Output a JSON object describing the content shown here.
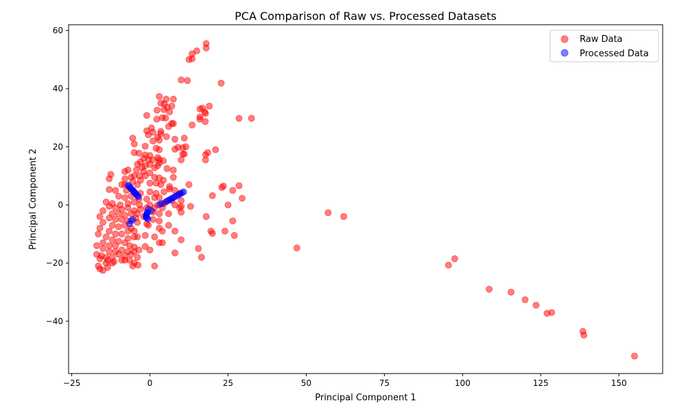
{
  "chart_data": {
    "type": "scatter",
    "title": "PCA Comparison of Raw vs. Processed Datasets",
    "xlabel": "Principal Component 1",
    "ylabel": "Principal Component 2",
    "xlim": [
      -26,
      164
    ],
    "ylim": [
      -58,
      62
    ],
    "xticks": [
      -25,
      0,
      25,
      50,
      75,
      100,
      125,
      150
    ],
    "yticks": [
      -40,
      -20,
      0,
      20,
      40,
      60
    ],
    "grid": false,
    "legend_position": "top-right",
    "series": [
      {
        "name": "Raw Data",
        "color": "#ff0000",
        "alpha": 0.5,
        "points": [
          [
            18,
            55.5
          ],
          [
            18,
            54
          ],
          [
            15,
            53
          ],
          [
            13.5,
            52
          ],
          [
            13.5,
            50.3
          ],
          [
            12.5,
            50
          ],
          [
            10,
            43
          ],
          [
            12,
            42.8
          ],
          [
            22.8,
            41.9
          ],
          [
            3,
            37.3
          ],
          [
            5.2,
            36.4
          ],
          [
            7.5,
            36.4
          ],
          [
            3.5,
            35
          ],
          [
            4.6,
            34.8
          ],
          [
            7,
            34
          ],
          [
            5.5,
            33.6
          ],
          [
            2.3,
            32.6
          ],
          [
            4.5,
            32.8
          ],
          [
            6.3,
            32
          ],
          [
            16,
            33
          ],
          [
            16.8,
            33.3
          ],
          [
            17.5,
            32
          ],
          [
            19,
            34
          ],
          [
            17.8,
            31.5
          ],
          [
            28.5,
            29.8
          ],
          [
            32.5,
            29.8
          ],
          [
            16,
            29.5
          ],
          [
            16,
            30.3
          ],
          [
            17.7,
            28.7
          ],
          [
            -1,
            30.8
          ],
          [
            2.2,
            29.5
          ],
          [
            4,
            30
          ],
          [
            5,
            29.9
          ],
          [
            7,
            28
          ],
          [
            7.5,
            28
          ],
          [
            13.5,
            27.5
          ],
          [
            6,
            27
          ],
          [
            0.5,
            26.5
          ],
          [
            -1,
            25.5
          ],
          [
            1,
            25
          ],
          [
            -0.5,
            24.1
          ],
          [
            3.5,
            24.5
          ],
          [
            3.5,
            25.3
          ],
          [
            5.3,
            23.5
          ],
          [
            -5.5,
            23
          ],
          [
            8,
            22.6
          ],
          [
            11,
            23
          ],
          [
            1,
            22
          ],
          [
            2.5,
            23.3
          ],
          [
            3,
            22.3
          ],
          [
            -5,
            21
          ],
          [
            -1.5,
            20.2
          ],
          [
            2,
            19.5
          ],
          [
            3,
            19
          ],
          [
            8,
            19.2
          ],
          [
            9,
            19.8
          ],
          [
            10.5,
            19.7
          ],
          [
            11.5,
            20
          ],
          [
            21,
            19
          ],
          [
            18.5,
            18
          ],
          [
            -5,
            18
          ],
          [
            -3.5,
            17.8
          ],
          [
            -1.5,
            17.2
          ],
          [
            0,
            17
          ],
          [
            2.5,
            16.3
          ],
          [
            10.5,
            17.5
          ],
          [
            11,
            17.5
          ],
          [
            17.8,
            17.3
          ],
          [
            17.8,
            15.5
          ],
          [
            -2,
            16
          ],
          [
            -0.5,
            15.5
          ],
          [
            1,
            15.5
          ],
          [
            3,
            15.6
          ],
          [
            4.3,
            15.2
          ],
          [
            10,
            15.5
          ],
          [
            -3,
            14.8
          ],
          [
            -4,
            14
          ],
          [
            -1.5,
            13.5
          ],
          [
            0,
            14
          ],
          [
            3,
            14.5
          ],
          [
            2.5,
            13.5
          ],
          [
            -2.5,
            13
          ],
          [
            1.5,
            12.8
          ],
          [
            -7,
            12
          ],
          [
            -8,
            11.5
          ],
          [
            -4.3,
            12
          ],
          [
            -2,
            11.5
          ],
          [
            0,
            11
          ],
          [
            5.5,
            12.5
          ],
          [
            7.5,
            12
          ],
          [
            -12.5,
            10.5
          ],
          [
            -5,
            10
          ],
          [
            -3.3,
            10
          ],
          [
            -1.5,
            10
          ],
          [
            1.5,
            9.5
          ],
          [
            3,
            9.3
          ],
          [
            4.3,
            8.5
          ],
          [
            7.5,
            9.5
          ],
          [
            -13,
            9
          ],
          [
            -8,
            9
          ],
          [
            -6,
            9.5
          ],
          [
            -3,
            8.5
          ],
          [
            -5.5,
            8
          ],
          [
            -9,
            7
          ],
          [
            -8,
            7
          ],
          [
            -4,
            7
          ],
          [
            0,
            7.5
          ],
          [
            2,
            7.5
          ],
          [
            3.5,
            7
          ],
          [
            6.3,
            5.5
          ],
          [
            6.3,
            6.3
          ],
          [
            12.5,
            7
          ],
          [
            23.5,
            6.5
          ],
          [
            23,
            6
          ],
          [
            28.5,
            6.6
          ],
          [
            -13,
            5.3
          ],
          [
            -11,
            5
          ],
          [
            -7.5,
            5
          ],
          [
            -5,
            4.5
          ],
          [
            -3,
            4
          ],
          [
            0,
            4.5
          ],
          [
            2,
            4
          ],
          [
            4.5,
            4.5
          ],
          [
            8,
            5
          ],
          [
            9.5,
            4
          ],
          [
            26.5,
            5
          ],
          [
            20,
            3.2
          ],
          [
            29.5,
            2.3
          ],
          [
            -10,
            3
          ],
          [
            -8,
            2.5
          ],
          [
            -6,
            3
          ],
          [
            -3.5,
            2
          ],
          [
            -1,
            2
          ],
          [
            1.5,
            2.5
          ],
          [
            3,
            2.5
          ],
          [
            5,
            1
          ],
          [
            7,
            1.5
          ],
          [
            10,
            1.5
          ],
          [
            -14,
            1
          ],
          [
            -12,
            0.5
          ],
          [
            -9.5,
            0
          ],
          [
            -7,
            0.5
          ],
          [
            -5,
            1
          ],
          [
            -3.3,
            0
          ],
          [
            0,
            0
          ],
          [
            2.5,
            0
          ],
          [
            4.5,
            0.5
          ],
          [
            8,
            0
          ],
          [
            10,
            -0.5
          ],
          [
            13,
            -0.5
          ],
          [
            25,
            0
          ],
          [
            -13,
            -0.5
          ],
          [
            -11,
            -1
          ],
          [
            -9,
            -1.5
          ],
          [
            -7,
            -1
          ],
          [
            -5,
            -2
          ],
          [
            -3,
            -1.5
          ],
          [
            -1,
            -1
          ],
          [
            1.5,
            -1
          ],
          [
            4,
            -1
          ],
          [
            9.5,
            -1
          ],
          [
            -15,
            -2
          ],
          [
            -12,
            -3
          ],
          [
            -10,
            -3
          ],
          [
            -8,
            -3.5
          ],
          [
            -6,
            -3
          ],
          [
            -4,
            -3
          ],
          [
            1,
            -2.5
          ],
          [
            3,
            -3
          ],
          [
            6,
            -3
          ],
          [
            10,
            -2.5
          ],
          [
            57,
            -2.7
          ],
          [
            62,
            -4
          ],
          [
            -16,
            -4
          ],
          [
            -13,
            -4.5
          ],
          [
            -11,
            -5
          ],
          [
            -9,
            -5
          ],
          [
            -7,
            -5.5
          ],
          [
            -4.5,
            -4.5
          ],
          [
            -2,
            -4
          ],
          [
            1,
            -5
          ],
          [
            3,
            -5.5
          ],
          [
            18,
            -4
          ],
          [
            26.5,
            -5.5
          ],
          [
            -15,
            -6
          ],
          [
            -12,
            -7
          ],
          [
            -10,
            -7.5
          ],
          [
            -8,
            -7
          ],
          [
            -6,
            -8
          ],
          [
            -4,
            -6
          ],
          [
            -1,
            -6.5
          ],
          [
            -0.5,
            -7
          ],
          [
            6,
            -7
          ],
          [
            -16,
            -8
          ],
          [
            -13,
            -9
          ],
          [
            -11,
            -10
          ],
          [
            -9,
            -10
          ],
          [
            -7,
            -9
          ],
          [
            -5,
            -9
          ],
          [
            3,
            -8
          ],
          [
            4,
            -9
          ],
          [
            8,
            -9
          ],
          [
            19.5,
            -9
          ],
          [
            20,
            -9.8
          ],
          [
            27,
            -10.5
          ],
          [
            24,
            -9
          ],
          [
            -16.5,
            -10
          ],
          [
            -14,
            -11
          ],
          [
            -12,
            -12
          ],
          [
            -10,
            -12.5
          ],
          [
            -7,
            -11.5
          ],
          [
            -5,
            -11
          ],
          [
            -4,
            -11
          ],
          [
            -1.5,
            -10.5
          ],
          [
            1.5,
            -11
          ],
          [
            -15,
            -13
          ],
          [
            -13,
            -14
          ],
          [
            -11,
            -14
          ],
          [
            -8,
            -13
          ],
          [
            -6.5,
            -14
          ],
          [
            -5,
            -14.5
          ],
          [
            -1.5,
            -14.3
          ],
          [
            3,
            -13
          ],
          [
            4,
            -13
          ],
          [
            10,
            -12
          ],
          [
            -17,
            -14
          ],
          [
            -15,
            -15
          ],
          [
            -13,
            -16
          ],
          [
            -11,
            -16
          ],
          [
            -9,
            -15.5
          ],
          [
            -7,
            -16
          ],
          [
            -5,
            -16
          ],
          [
            -3.5,
            -15.5
          ],
          [
            0,
            -15.5
          ],
          [
            15.5,
            -15
          ],
          [
            47,
            -14.8
          ],
          [
            -17,
            -17
          ],
          [
            -15.5,
            -17.5
          ],
          [
            -14,
            -18
          ],
          [
            -12,
            -18
          ],
          [
            -10,
            -17
          ],
          [
            -8,
            -17.5
          ],
          [
            -6,
            -17
          ],
          [
            -4,
            -18
          ],
          [
            8,
            -16.5
          ],
          [
            16.5,
            -18
          ],
          [
            -16,
            -18.5
          ],
          [
            -13.5,
            -19
          ],
          [
            -11.5,
            -19.5
          ],
          [
            -9,
            -19
          ],
          [
            -6.5,
            -19
          ],
          [
            -5,
            -20
          ],
          [
            -14,
            -20
          ],
          [
            -12,
            -20
          ],
          [
            -8,
            -19
          ],
          [
            -16.5,
            -21
          ],
          [
            -13.5,
            -21.5
          ],
          [
            -5.5,
            -21
          ],
          [
            -3.8,
            -20.7
          ],
          [
            1.5,
            -21
          ],
          [
            -16,
            -22
          ],
          [
            -15,
            -22.5
          ],
          [
            95.5,
            -20.7
          ],
          [
            97.5,
            -18.5
          ],
          [
            108.5,
            -29
          ],
          [
            115.5,
            -30
          ],
          [
            120,
            -32.6
          ],
          [
            123.5,
            -34.5
          ],
          [
            127,
            -37.3
          ],
          [
            128.5,
            -37
          ],
          [
            138.5,
            -43.5
          ],
          [
            138.8,
            -44.8
          ],
          [
            155,
            -52
          ]
        ]
      },
      {
        "name": "Processed Data",
        "color": "#0000ff",
        "alpha": 0.5,
        "points": [
          [
            -7,
            6.8
          ],
          [
            -6.7,
            6.4
          ],
          [
            -6.3,
            6
          ],
          [
            -6,
            5.6
          ],
          [
            -5.6,
            5.2
          ],
          [
            -5.3,
            4.8
          ],
          [
            -5,
            4.4
          ],
          [
            -4.7,
            4
          ],
          [
            -4.3,
            3.6
          ],
          [
            -4,
            3.2
          ],
          [
            -3.7,
            2.8
          ],
          [
            10.8,
            4.5
          ],
          [
            10.3,
            4.2
          ],
          [
            9.8,
            3.9
          ],
          [
            9.3,
            3.6
          ],
          [
            8.8,
            3.3
          ],
          [
            8.3,
            3
          ],
          [
            7.8,
            2.7
          ],
          [
            7.3,
            2.4
          ],
          [
            6.8,
            2.1
          ],
          [
            6.3,
            1.8
          ],
          [
            5.8,
            1.5
          ],
          [
            5.3,
            1.2
          ],
          [
            3.8,
            0.5
          ],
          [
            3.2,
            0.2
          ],
          [
            -0.5,
            -1.5
          ],
          [
            -0.8,
            -2.5
          ],
          [
            -1,
            -3
          ],
          [
            -1.1,
            -3.4
          ],
          [
            -1.2,
            -3.8
          ],
          [
            -1.2,
            -4.2
          ],
          [
            -1,
            -4.5
          ],
          [
            -0.6,
            -4.8
          ],
          [
            0.5,
            -2
          ],
          [
            -5.5,
            -5
          ],
          [
            -6,
            -5.5
          ],
          [
            -6.5,
            -6.5
          ]
        ]
      }
    ]
  }
}
